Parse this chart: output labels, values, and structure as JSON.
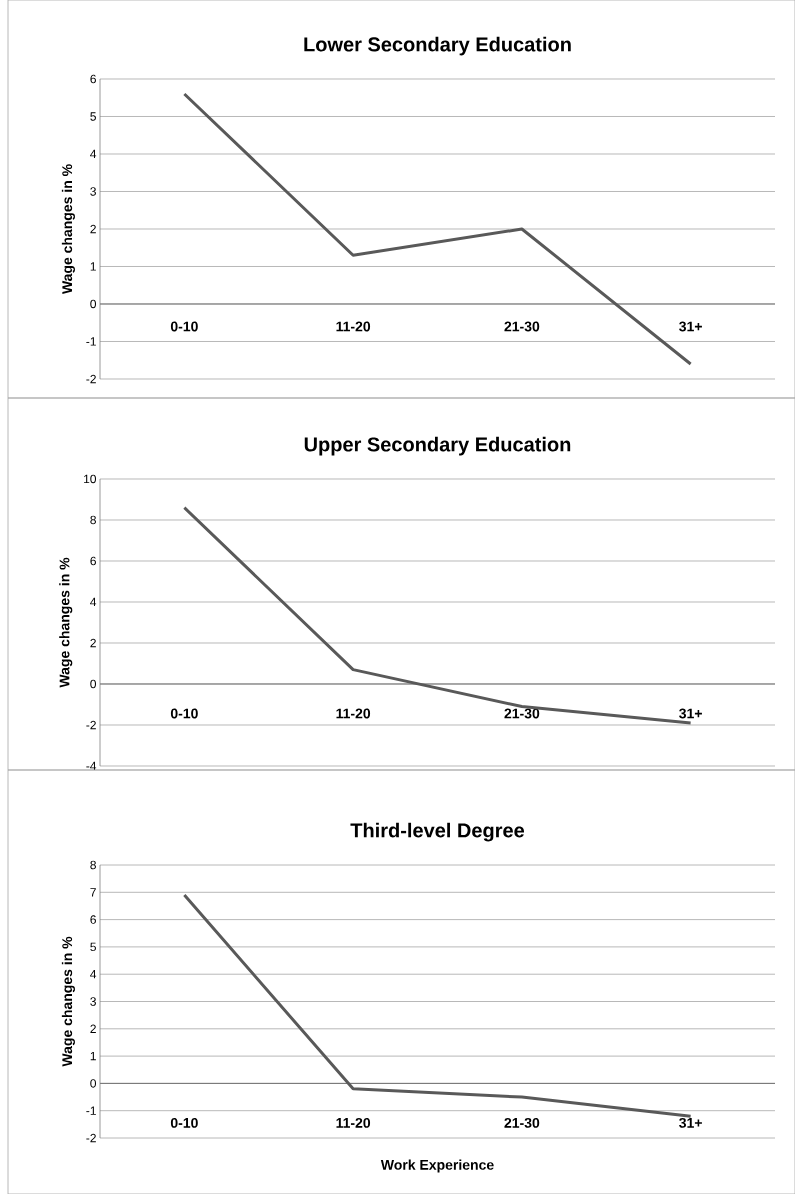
{
  "chart_data": [
    {
      "type": "line",
      "title": "Lower Secondary Education",
      "ylabel": "Wage changes in %",
      "categories": [
        "0-10",
        "11-20",
        "21-30",
        "31+"
      ],
      "values": [
        5.6,
        1.3,
        2.0,
        -1.6
      ],
      "color": "#595959",
      "ylim": [
        -2,
        6
      ],
      "yticks": [
        -2,
        -1,
        0,
        1,
        2,
        3,
        4,
        5,
        6
      ],
      "grid": "y"
    },
    {
      "type": "line",
      "title": "Upper Secondary Education",
      "ylabel": "Wage changes in %",
      "categories": [
        "0-10",
        "11-20",
        "21-30",
        "31+"
      ],
      "values": [
        8.6,
        0.7,
        -1.1,
        -1.9
      ],
      "color": "#595959",
      "ylim": [
        -4,
        10
      ],
      "yticks": [
        -4,
        -2,
        0,
        2,
        4,
        6,
        8,
        10
      ],
      "grid": "y"
    },
    {
      "type": "line",
      "title": "Third-level Degree",
      "xlabel": "Work Experience",
      "ylabel": "Wage changes in %",
      "categories": [
        "0-10",
        "11-20",
        "21-30",
        "31+"
      ],
      "values": [
        6.9,
        -0.2,
        -0.5,
        -1.2
      ],
      "color": "#595959",
      "ylim": [
        -2,
        8
      ],
      "yticks": [
        -2,
        -1,
        0,
        1,
        2,
        3,
        4,
        5,
        6,
        7,
        8
      ],
      "grid": "y"
    }
  ]
}
